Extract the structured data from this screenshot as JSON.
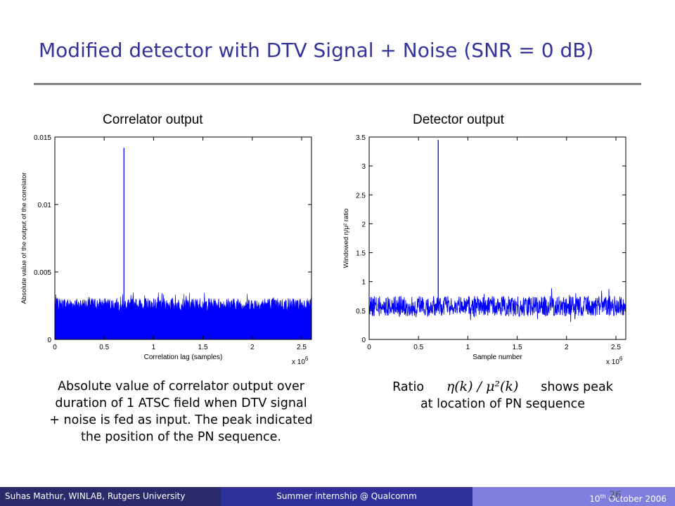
{
  "slide": {
    "title": "Modified detector with DTV Signal + Noise (SNR = 0 dB)",
    "left_caption": [
      "Absolute value of correlator output over",
      "duration of 1 ATSC field when DTV signal",
      "+ noise is fed as input. The peak indicated",
      "the position of the PN sequence."
    ],
    "right_caption": {
      "prefix": "Ratio",
      "formula": "η(k) / μ²(k)",
      "suffix": "shows peak",
      "line2": "at location of PN sequence"
    }
  },
  "footer": {
    "left": "Suhas Mathur, WINLAB, Rutgers University",
    "center": "Summer internship @ Qualcomm",
    "right": "10th October 2006",
    "page": "26"
  },
  "colors": {
    "title": "#333399",
    "signal": "#0000ff"
  },
  "chart_data": [
    {
      "type": "line",
      "title": "Correlator output",
      "xlabel": "Correlation lag (samples)",
      "ylabel": "Absolute value of the output of the correlator",
      "x_multiplier": "x 10^6",
      "xlim": [
        0,
        2.6
      ],
      "ylim": [
        0,
        0.015
      ],
      "xticks": [
        "0",
        "0.5",
        "1",
        "1.5",
        "2",
        "2.5"
      ],
      "yticks": [
        "0",
        "0.005",
        "0.01",
        "0.015"
      ],
      "series": [
        {
          "noise_floor_mean": 0.0026,
          "noise_floor_max": 0.0035,
          "peak": {
            "x": 0.7,
            "y": 0.0142
          }
        }
      ]
    },
    {
      "type": "line",
      "title": "Detector output",
      "xlabel": "Sample number",
      "ylabel": "Windowed η/μ² ratio",
      "x_multiplier": "x 10^6",
      "xlim": [
        0,
        2.6
      ],
      "ylim": [
        0,
        3.5
      ],
      "xticks": [
        "0",
        "0.5",
        "1",
        "1.5",
        "2",
        "2.5"
      ],
      "yticks": [
        "0",
        "0.5",
        "1",
        "1.5",
        "2",
        "2.5",
        "3",
        "3.5"
      ],
      "series": [
        {
          "noise_band": [
            0.4,
            0.75
          ],
          "noise_mean": 0.57,
          "peak": {
            "x": 0.7,
            "y": 3.45
          }
        }
      ]
    }
  ]
}
